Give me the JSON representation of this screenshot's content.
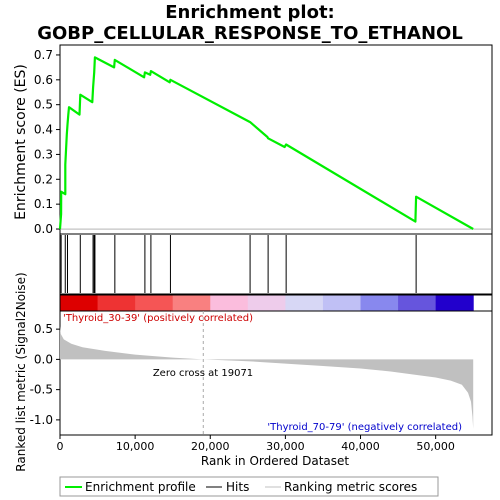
{
  "chart_data": {
    "type": "line",
    "title_line1": "Enrichment plot:",
    "title_line2": "GOBP_CELLULAR_RESPONSE_TO_ETHANOL",
    "top_panel": {
      "ylabel": "Enrichment score (ES)",
      "ylim": [
        -0.02,
        0.74
      ],
      "yticks": [
        0.0,
        0.1,
        0.2,
        0.3,
        0.4,
        0.5,
        0.6,
        0.7
      ],
      "ytick_labels": [
        "0.0",
        "0.1",
        "0.2",
        "0.3",
        "0.4",
        "0.5",
        "0.6",
        "0.7"
      ],
      "series": [
        {
          "name": "Enrichment profile",
          "color": "#00ee00",
          "x": [
            0,
            150,
            160,
            700,
            710,
            900,
            1000,
            1100,
            1200,
            2600,
            2700,
            4300,
            4400,
            4550,
            4650,
            7200,
            7300,
            11200,
            11300,
            12000,
            12100,
            14600,
            14700,
            25300,
            27600,
            27700,
            29900,
            30100,
            47300,
            47400,
            55000
          ],
          "y": [
            0.0,
            0.06,
            0.15,
            0.14,
            0.26,
            0.38,
            0.42,
            0.46,
            0.49,
            0.46,
            0.54,
            0.51,
            0.57,
            0.63,
            0.69,
            0.65,
            0.68,
            0.61,
            0.63,
            0.62,
            0.635,
            0.59,
            0.6,
            0.43,
            0.37,
            0.365,
            0.33,
            0.34,
            0.03,
            0.13,
            0.0
          ]
        }
      ]
    },
    "hits": {
      "label": "Hits",
      "positions": [
        150,
        700,
        1000,
        2700,
        4400,
        4550,
        4650,
        7300,
        11300,
        12100,
        14700,
        25300,
        27700,
        30100,
        47400
      ]
    },
    "metric_panel": {
      "ylabel": "Ranked list metric (Signal2Noise)",
      "ylim": [
        -1.25,
        0.8
      ],
      "yticks": [
        -1.0,
        -0.5,
        0.0,
        0.5
      ],
      "ytick_labels": [
        "-1.0",
        "-0.5",
        "0.0",
        "0.5"
      ],
      "series_label": "Ranking metric scores",
      "n_genes": 55000,
      "zero_cross": 19071,
      "profile_x": [
        0,
        100,
        500,
        1500,
        3000,
        6000,
        10000,
        15000,
        19071,
        25000,
        30000,
        35000,
        40000,
        44000,
        47000,
        50000,
        52000,
        53500,
        54300,
        54700,
        54900,
        55000
      ],
      "profile_y": [
        0.55,
        0.42,
        0.33,
        0.26,
        0.2,
        0.14,
        0.08,
        0.03,
        0.0,
        -0.03,
        -0.07,
        -0.11,
        -0.15,
        -0.2,
        -0.25,
        -0.3,
        -0.35,
        -0.42,
        -0.55,
        -0.7,
        -0.95,
        -1.15
      ]
    },
    "xlabel": "Rank in Ordered Dataset",
    "xlim": [
      0,
      57500
    ],
    "xticks": [
      0,
      10000,
      20000,
      30000,
      40000,
      50000
    ],
    "xtick_labels": [
      "0",
      "10,000",
      "20,000",
      "30,000",
      "40,000",
      "50,000"
    ],
    "annotations": {
      "positive": "'Thyroid_30-39' (positively correlated)",
      "negative": "'Thyroid_70-79' (negatively correlated)",
      "zero_cross": "Zero cross at 19071"
    },
    "legend": {
      "placement": "bottom",
      "items": [
        {
          "label": "Enrichment profile",
          "color": "#00ee00"
        },
        {
          "label": "Hits",
          "color": "#000000"
        },
        {
          "label": "Ranking metric scores",
          "color": "#c0c0c0"
        }
      ]
    },
    "colors": {
      "profile": "#00ee00",
      "metric_fill": "#c0c0c0",
      "positive_text": "#cc0000",
      "negative_text": "#0000cc",
      "heat_bands": [
        "#dd0000",
        "#ee3333",
        "#f55555",
        "#f98080",
        "#fbbddd",
        "#eecceb",
        "#d7d7f5",
        "#c0c0f5",
        "#8888ee",
        "#6655dd",
        "#2200cc"
      ]
    }
  }
}
